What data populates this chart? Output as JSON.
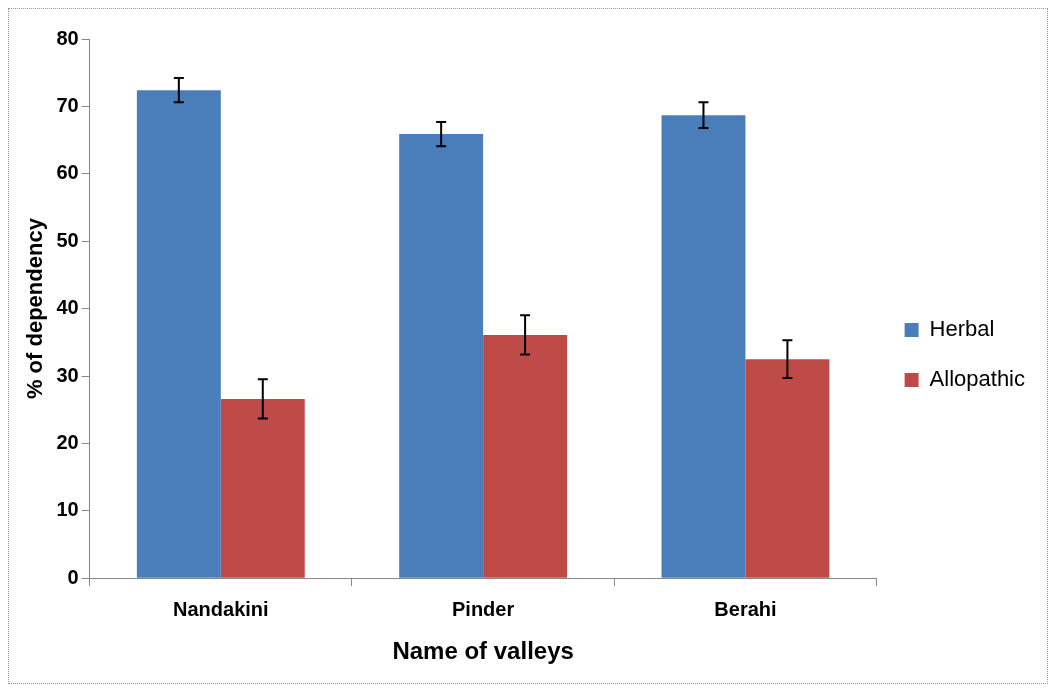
{
  "chart_data": {
    "type": "bar",
    "xlabel": "Name of valleys",
    "ylabel": "% of dependency",
    "categories": [
      "Nandakini",
      "Pinder",
      "Berahi"
    ],
    "series": [
      {
        "name": "Herbal",
        "color": "#4a7ebb",
        "values": [
          72.4,
          65.9,
          68.7
        ],
        "errors": [
          1.8,
          1.8,
          1.9
        ]
      },
      {
        "name": "Allopathic",
        "color": "#be4b48",
        "values": [
          26.6,
          36.1,
          32.5
        ],
        "errors": [
          2.9,
          2.9,
          2.8
        ]
      }
    ],
    "ylim": [
      0,
      80
    ],
    "yticks": [
      0,
      10,
      20,
      30,
      40,
      50,
      60,
      70,
      80
    ],
    "grid": false,
    "legend": "right"
  }
}
